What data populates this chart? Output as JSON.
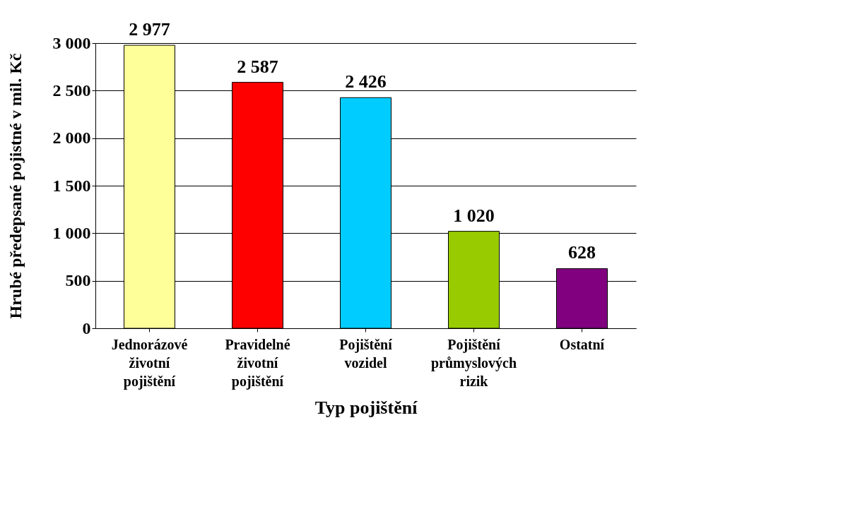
{
  "chart_data": {
    "type": "bar",
    "xlabel": "Typ pojištění",
    "ylabel": "Hrubé předepsané pojistné v mil. Kč",
    "categories": [
      "Jednorázové životní pojištění",
      "Pravidelné životní pojištění",
      "Pojištění vozidel",
      "Pojištění průmyslových rizik",
      "Ostatní"
    ],
    "values": [
      2977,
      2587,
      2426,
      1020,
      628
    ],
    "colors": [
      "#ffff99",
      "#ff0000",
      "#00ccff",
      "#99cc00",
      "#800080"
    ],
    "value_labels": [
      "2 977",
      "2 587",
      "2 426",
      "1 020",
      "628"
    ],
    "ylim": [
      0,
      3000
    ],
    "yticks": [
      0,
      500,
      {
        "value": 1000,
        "label": "1 000"
      },
      {
        "value": 1500,
        "label": "1 500"
      },
      {
        "value": 2000,
        "label": "2 000"
      },
      {
        "value": 2500,
        "label": "2 500"
      },
      {
        "value": 3000,
        "label": "3 000"
      }
    ],
    "grid": "y"
  }
}
